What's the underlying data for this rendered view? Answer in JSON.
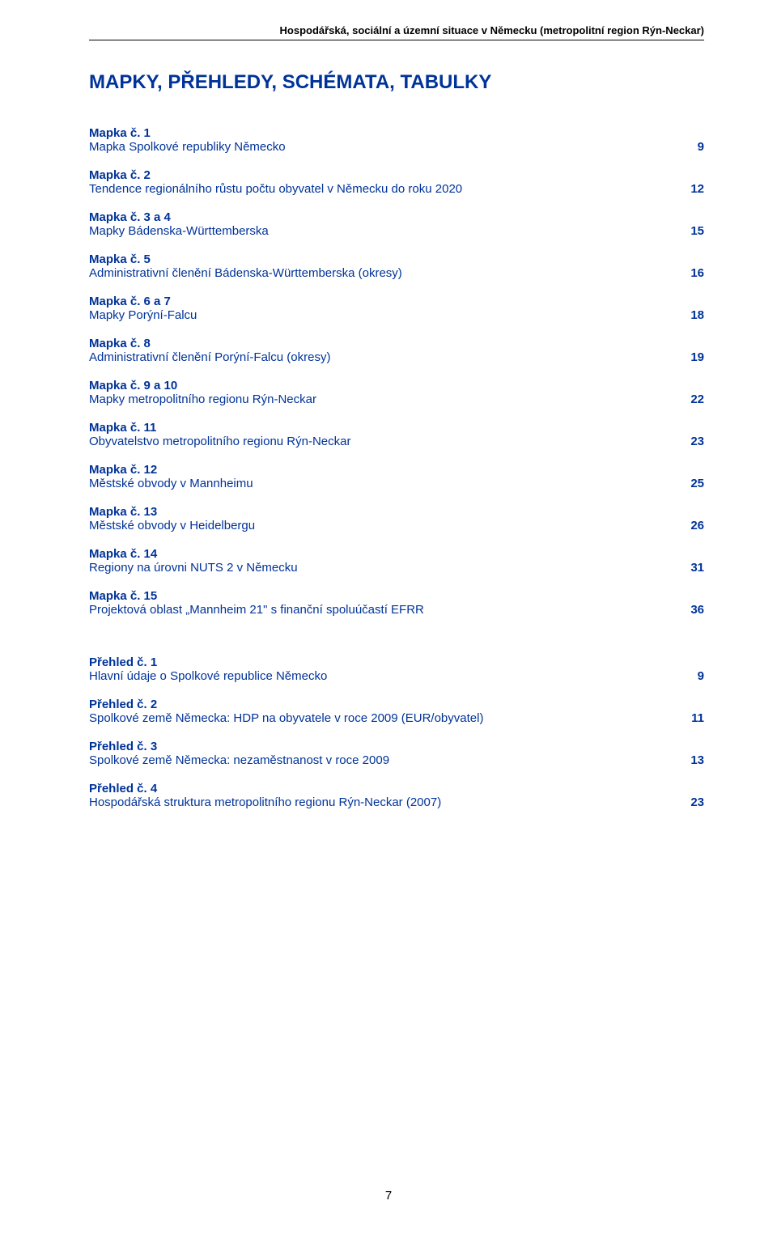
{
  "running_head": "Hospodářská, sociální a územní situace v Německu (metropolitní region Rýn-Neckar)",
  "main_title": "MAPKY, PŘEHLEDY, SCHÉMATA, TABULKY",
  "mapky": [
    {
      "head": "Mapka č. 1",
      "desc": "Mapka Spolkové republiky Německo",
      "page": "9"
    },
    {
      "head": "Mapka č. 2",
      "desc": "Tendence regionálního růstu počtu obyvatel v Německu do roku 2020",
      "page": "12"
    },
    {
      "head": "Mapka č. 3 a 4",
      "desc": "Mapky Bádenska-Württemberska",
      "page": "15"
    },
    {
      "head": "Mapka č. 5",
      "desc": "Administrativní členění Bádenska-Württemberska (okresy)",
      "page": "16"
    },
    {
      "head": "Mapka č. 6 a 7",
      "desc": "Mapky Porýní-Falcu",
      "page": "18"
    },
    {
      "head": "Mapka č. 8",
      "desc": "Administrativní členění Porýní-Falcu (okresy)",
      "page": "19"
    },
    {
      "head": "Mapka č. 9 a 10",
      "desc": "Mapky metropolitního regionu Rýn-Neckar",
      "page": "22"
    },
    {
      "head": "Mapka č. 11",
      "desc": "Obyvatelstvo metropolitního regionu Rýn-Neckar",
      "page": "23"
    },
    {
      "head": "Mapka č. 12",
      "desc": "Městské obvody v Mannheimu",
      "page": "25"
    },
    {
      "head": "Mapka č. 13",
      "desc": "Městské obvody v Heidelbergu",
      "page": "26"
    },
    {
      "head": "Mapka č. 14",
      "desc": "Regiony na úrovni NUTS 2 v Německu",
      "page": "31"
    },
    {
      "head": "Mapka č. 15",
      "desc": "Projektová oblast „Mannheim 21\" s finanční spoluúčastí EFRR",
      "page": "36"
    }
  ],
  "prehledy": [
    {
      "head": "Přehled č. 1",
      "desc": "Hlavní údaje o Spolkové republice Německo",
      "page": "9"
    },
    {
      "head": "Přehled č. 2",
      "desc": "Spolkové země Německa: HDP na obyvatele v roce 2009 (EUR/obyvatel)",
      "page": "11"
    },
    {
      "head": "Přehled č. 3",
      "desc": "Spolkové země Německa: nezaměstnanost v roce 2009",
      "page": "13"
    },
    {
      "head": "Přehled č. 4",
      "desc": "Hospodářská struktura metropolitního regionu Rýn-Neckar (2007)",
      "page": "23"
    }
  ],
  "page_number": "7",
  "colors": {
    "link_blue": "#003399",
    "text_black": "#000000",
    "bg": "#ffffff"
  }
}
